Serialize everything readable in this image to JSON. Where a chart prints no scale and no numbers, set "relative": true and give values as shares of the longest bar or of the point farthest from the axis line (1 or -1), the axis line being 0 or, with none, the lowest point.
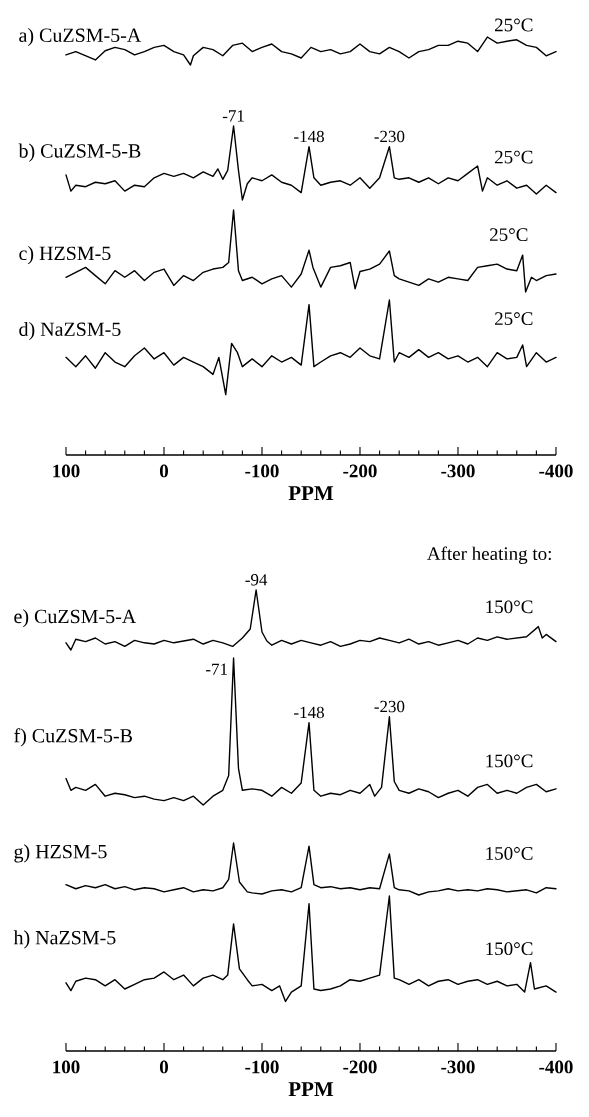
{
  "chart_data": [
    {
      "type": "line",
      "relative": true,
      "xlim": [
        100,
        -400
      ],
      "tick_labels": false,
      "annotations": [
        "25°C"
      ],
      "x": [
        100,
        90,
        80,
        70,
        60,
        50,
        40,
        30,
        20,
        10,
        0,
        -10,
        -20,
        -27,
        -30,
        -40,
        -50,
        -60,
        -70,
        -80,
        -90,
        -100,
        -110,
        -120,
        -130,
        -140,
        -150,
        -160,
        -170,
        -180,
        -190,
        -200,
        -210,
        -220,
        -230,
        -240,
        -250,
        -260,
        -270,
        -280,
        -290,
        -300,
        -310,
        -320,
        -330,
        -340,
        -350,
        -360,
        -370,
        -380,
        -390,
        -400
      ],
      "series": [
        {
          "name": "a) CuZSM-5-A",
          "color": "#000000",
          "values": [
            0.36,
            0.48,
            0.33,
            0.18,
            0.51,
            0.63,
            0.55,
            0.36,
            0.48,
            0.63,
            0.7,
            0.48,
            0.36,
            0,
            0.33,
            0.63,
            0.55,
            0.33,
            0.7,
            0.78,
            0.48,
            0.63,
            0.75,
            0.48,
            0.4,
            0.25,
            0.63,
            0.48,
            0.55,
            0.4,
            0.48,
            0.75,
            0.48,
            0.4,
            0.63,
            0.48,
            0.25,
            0.48,
            0.55,
            0.7,
            0.7,
            0.85,
            0.78,
            0.48,
            1,
            0.78,
            0.85,
            0.9,
            0.7,
            0.63,
            0.33,
            0.48
          ]
        }
      ]
    },
    {
      "type": "line",
      "relative": true,
      "xlim": [
        100,
        -400
      ],
      "tick_labels": false,
      "annotations": [
        "25°C",
        {
          "text": "-71",
          "x": -71,
          "y": 1
        },
        {
          "text": "-148",
          "x": -148,
          "y": 0.72
        },
        {
          "text": "-230",
          "x": -230,
          "y": 0.72
        }
      ],
      "x": [
        100,
        95,
        90,
        80,
        70,
        60,
        50,
        40,
        30,
        20,
        10,
        0,
        -10,
        -20,
        -30,
        -40,
        -50,
        -55,
        -60,
        -65,
        -71,
        -76,
        -80,
        -85,
        -90,
        -100,
        -110,
        -120,
        -130,
        -140,
        -148,
        -153,
        -160,
        -170,
        -180,
        -190,
        -200,
        -210,
        -220,
        -230,
        -235,
        -240,
        -250,
        -260,
        -270,
        -280,
        -290,
        -300,
        -310,
        -320,
        -325,
        -330,
        -340,
        -350,
        -360,
        -370,
        -380,
        -390,
        -400
      ],
      "series": [
        {
          "name": "b) CuZSM-5-B",
          "color": "#000000",
          "values": [
            0.34,
            0.12,
            0.2,
            0.18,
            0.24,
            0.22,
            0.26,
            0.12,
            0.2,
            0.18,
            0.3,
            0.36,
            0.32,
            0.36,
            0.3,
            0.38,
            0.32,
            0.42,
            0.28,
            0.4,
            1,
            0.4,
            0,
            0.22,
            0.3,
            0.26,
            0.34,
            0.24,
            0.2,
            0.1,
            0.72,
            0.3,
            0.2,
            0.24,
            0.26,
            0.2,
            0.3,
            0.16,
            0.3,
            0.72,
            0.3,
            0.28,
            0.3,
            0.24,
            0.3,
            0.22,
            0.3,
            0.26,
            0.36,
            0.46,
            0.12,
            0.3,
            0.2,
            0.26,
            0.16,
            0.2,
            0.08,
            0.2,
            0.1
          ]
        }
      ]
    },
    {
      "type": "line",
      "relative": true,
      "xlim": [
        100,
        -400
      ],
      "tick_labels": false,
      "annotations": [
        "25°C"
      ],
      "x": [
        100,
        90,
        80,
        70,
        60,
        50,
        40,
        30,
        20,
        10,
        0,
        -10,
        -20,
        -30,
        -40,
        -50,
        -60,
        -66,
        -71,
        -76,
        -80,
        -90,
        -100,
        -110,
        -120,
        -130,
        -140,
        -148,
        -152,
        -160,
        -170,
        -180,
        -190,
        -195,
        -200,
        -210,
        -220,
        -230,
        -235,
        -240,
        -250,
        -260,
        -270,
        -280,
        -290,
        -300,
        -310,
        -320,
        -330,
        -340,
        -350,
        -360,
        -366,
        -369,
        -375,
        -380,
        -390,
        -400
      ],
      "series": [
        {
          "name": "c) HZSM-5",
          "color": "#000000",
          "values": [
            0.18,
            0.24,
            0.3,
            0.2,
            0.1,
            0.26,
            0.18,
            0.26,
            0.14,
            0.24,
            0.28,
            0.08,
            0.2,
            0.14,
            0.24,
            0.28,
            0.3,
            0.36,
            1,
            0.26,
            0.14,
            0.18,
            0.1,
            0.16,
            0.2,
            0.06,
            0.22,
            0.51,
            0.3,
            0.06,
            0.3,
            0.32,
            0.36,
            0.04,
            0.25,
            0.28,
            0.34,
            0.5,
            0.2,
            0.16,
            0.12,
            0.08,
            0.16,
            0.12,
            0.18,
            0.16,
            0.14,
            0.3,
            0.32,
            0.34,
            0.28,
            0.26,
            0.45,
            0,
            0.18,
            0.14,
            0.2,
            0.22
          ]
        }
      ]
    },
    {
      "type": "line",
      "relative": true,
      "xlim": [
        100,
        -400
      ],
      "tick_labels": "x",
      "xlabel": "PPM",
      "annotations": [
        "25°C"
      ],
      "xticks": [
        100,
        {
          "value": 80,
          "label": null
        },
        {
          "value": 60,
          "label": null
        },
        {
          "value": 40,
          "label": null
        },
        {
          "value": 20,
          "label": null
        },
        0,
        {
          "value": -20,
          "label": null
        },
        {
          "value": -40,
          "label": null
        },
        {
          "value": -60,
          "label": null
        },
        {
          "value": -80,
          "label": null
        },
        -100,
        {
          "value": -120,
          "label": null
        },
        {
          "value": -140,
          "label": null
        },
        {
          "value": -160,
          "label": null
        },
        {
          "value": -180,
          "label": null
        },
        -200,
        {
          "value": -220,
          "label": null
        },
        {
          "value": -240,
          "label": null
        },
        {
          "value": -260,
          "label": null
        },
        {
          "value": -280,
          "label": null
        },
        -300,
        {
          "value": -320,
          "label": null
        },
        {
          "value": -340,
          "label": null
        },
        {
          "value": -360,
          "label": null
        },
        {
          "value": -380,
          "label": null
        },
        -400
      ],
      "x": [
        100,
        90,
        80,
        70,
        60,
        50,
        40,
        30,
        20,
        10,
        0,
        -10,
        -20,
        -30,
        -40,
        -50,
        -56,
        -63,
        -69,
        -75,
        -80,
        -90,
        -100,
        -110,
        -120,
        -130,
        -140,
        -148,
        -153,
        -160,
        -170,
        -180,
        -190,
        -200,
        -210,
        -220,
        -230,
        -235,
        -240,
        -250,
        -260,
        -270,
        -280,
        -290,
        -300,
        -310,
        -320,
        -330,
        -340,
        -350,
        -360,
        -366,
        -370,
        -380,
        -390,
        -400
      ],
      "series": [
        {
          "name": "d) NaZSM-5",
          "color": "#000000",
          "values": [
            0.63,
            0.57,
            0.64,
            0.56,
            0.66,
            0.6,
            0.57,
            0.64,
            0.69,
            0.62,
            0.66,
            0.58,
            0.63,
            0.6,
            0.57,
            0.52,
            0.63,
            0.39,
            0.72,
            0.66,
            0.57,
            0.62,
            0.57,
            0.64,
            0.6,
            0.63,
            0.58,
            0.97,
            0.57,
            0.6,
            0.64,
            0.66,
            0.63,
            0.69,
            0.64,
            0.62,
            1,
            0.6,
            0.66,
            0.63,
            0.68,
            0.63,
            0.66,
            0.62,
            0.64,
            0.6,
            0.63,
            0.57,
            0.66,
            0.62,
            0.63,
            0.71,
            0.57,
            0.66,
            0.6,
            0.63
          ]
        }
      ]
    },
    {
      "type": "line",
      "relative": true,
      "xlim": [
        100,
        -400
      ],
      "tick_labels": false,
      "annotations": [
        "After heating to:",
        "150°C",
        {
          "text": "-94",
          "x": -94,
          "y": 1
        }
      ],
      "x": [
        100,
        95,
        90,
        80,
        70,
        60,
        50,
        40,
        30,
        20,
        10,
        0,
        -10,
        -20,
        -30,
        -40,
        -50,
        -60,
        -70,
        -80,
        -88,
        -94,
        -100,
        -105,
        -110,
        -120,
        -130,
        -140,
        -150,
        -160,
        -170,
        -180,
        -190,
        -200,
        -210,
        -220,
        -230,
        -240,
        -250,
        -260,
        -270,
        -280,
        -290,
        -300,
        -310,
        -320,
        -330,
        -340,
        -350,
        -360,
        -370,
        -382,
        -386,
        -390,
        -400
      ],
      "series": [
        {
          "name": "e) CuZSM-5-A",
          "color": "#000000",
          "values": [
            0.12,
            0,
            0.18,
            0.14,
            0.2,
            0.1,
            0.14,
            0.06,
            0.16,
            0.12,
            0.1,
            0.16,
            0.12,
            0.15,
            0.18,
            0.1,
            0.16,
            0.12,
            0.06,
            0.2,
            0.35,
            1,
            0.3,
            0.15,
            0.08,
            0.16,
            0.1,
            0.16,
            0.12,
            0.08,
            0.14,
            0.06,
            0.1,
            0.16,
            0.14,
            0.2,
            0.16,
            0.12,
            0.18,
            0.1,
            0.14,
            0.08,
            0.12,
            0.16,
            0.1,
            0.2,
            0.16,
            0.22,
            0.18,
            0.2,
            0.22,
            0.39,
            0.2,
            0.26,
            0.14
          ]
        }
      ]
    },
    {
      "type": "line",
      "relative": true,
      "xlim": [
        100,
        -400
      ],
      "tick_labels": false,
      "annotations": [
        "150°C",
        {
          "text": "-71",
          "x": -71,
          "y": 1
        },
        {
          "text": "-148",
          "x": -148,
          "y": 0.56
        },
        {
          "text": "-230",
          "x": -230,
          "y": 0.6
        }
      ],
      "x": [
        100,
        95,
        90,
        80,
        70,
        60,
        50,
        40,
        30,
        20,
        10,
        0,
        -10,
        -20,
        -30,
        -40,
        -50,
        -60,
        -66,
        -71,
        -76,
        -80,
        -90,
        -100,
        -110,
        -120,
        -130,
        -140,
        -148,
        -153,
        -160,
        -170,
        -180,
        -190,
        -200,
        -210,
        -215,
        -222,
        -230,
        -235,
        -240,
        -250,
        -260,
        -270,
        -280,
        -290,
        -300,
        -310,
        -320,
        -330,
        -340,
        -350,
        -360,
        -370,
        -380,
        -390,
        -400
      ],
      "series": [
        {
          "name": "f) CuZSM-5-B",
          "color": "#000000",
          "values": [
            0.18,
            0.1,
            0.12,
            0.1,
            0.14,
            0.06,
            0.08,
            0.07,
            0.05,
            0.06,
            0.04,
            0.03,
            0.05,
            0.03,
            0.06,
            0,
            0.06,
            0.1,
            0.2,
            1,
            0.25,
            0.1,
            0.11,
            0.1,
            0.06,
            0.12,
            0.08,
            0.15,
            0.56,
            0.1,
            0.06,
            0.08,
            0.07,
            0.1,
            0.08,
            0.14,
            0.06,
            0.12,
            0.6,
            0.16,
            0.1,
            0.08,
            0.11,
            0.09,
            0.05,
            0.08,
            0.1,
            0.06,
            0.12,
            0.14,
            0.08,
            0.1,
            0.08,
            0.12,
            0.14,
            0.09,
            0.11
          ]
        }
      ]
    },
    {
      "type": "line",
      "relative": true,
      "xlim": [
        100,
        -400
      ],
      "tick_labels": false,
      "annotations": [
        "150°C"
      ],
      "x": [
        100,
        90,
        80,
        70,
        60,
        50,
        40,
        30,
        20,
        10,
        0,
        -10,
        -20,
        -30,
        -40,
        -50,
        -60,
        -66,
        -71,
        -77,
        -85,
        -90,
        -100,
        -110,
        -120,
        -130,
        -140,
        -148,
        -153,
        -160,
        -170,
        -180,
        -190,
        -200,
        -210,
        -220,
        -230,
        -235,
        -240,
        -250,
        -260,
        -270,
        -280,
        -290,
        -300,
        -310,
        -320,
        -330,
        -340,
        -350,
        -360,
        -370,
        -380,
        -390,
        -400
      ],
      "series": [
        {
          "name": "g) HZSM-5",
          "color": "#000000",
          "values": [
            0.2,
            0.12,
            0.18,
            0.14,
            0.2,
            0.12,
            0.16,
            0.1,
            0.14,
            0.12,
            0.06,
            0.1,
            0.14,
            0.06,
            0.1,
            0.08,
            0.14,
            0.3,
            1,
            0.25,
            0.06,
            0.04,
            0.02,
            0.08,
            0.1,
            0.06,
            0.14,
            0.94,
            0.2,
            0.14,
            0.16,
            0.12,
            0.14,
            0.1,
            0.14,
            0.12,
            0.79,
            0.14,
            0.1,
            0.08,
            0,
            0.06,
            0.08,
            0.12,
            0.08,
            0.1,
            0.08,
            0.12,
            0.1,
            0.06,
            0.08,
            0.1,
            0.04,
            0.14,
            0.12
          ]
        }
      ]
    },
    {
      "type": "line",
      "relative": true,
      "xlim": [
        100,
        -400
      ],
      "tick_labels": "x",
      "xlabel": "PPM",
      "annotations": [
        "150°C"
      ],
      "xticks": [
        100,
        {
          "value": 80,
          "label": null
        },
        {
          "value": 60,
          "label": null
        },
        {
          "value": 40,
          "label": null
        },
        {
          "value": 20,
          "label": null
        },
        0,
        {
          "value": -20,
          "label": null
        },
        {
          "value": -40,
          "label": null
        },
        {
          "value": -60,
          "label": null
        },
        {
          "value": -80,
          "label": null
        },
        -100,
        {
          "value": -120,
          "label": null
        },
        {
          "value": -140,
          "label": null
        },
        {
          "value": -160,
          "label": null
        },
        {
          "value": -180,
          "label": null
        },
        -200,
        {
          "value": -220,
          "label": null
        },
        {
          "value": -240,
          "label": null
        },
        {
          "value": -260,
          "label": null
        },
        {
          "value": -280,
          "label": null
        },
        -300,
        {
          "value": -320,
          "label": null
        },
        {
          "value": -340,
          "label": null
        },
        {
          "value": -360,
          "label": null
        },
        {
          "value": -380,
          "label": null
        },
        -400
      ],
      "x": [
        100,
        95,
        90,
        80,
        70,
        60,
        50,
        40,
        30,
        20,
        10,
        0,
        -10,
        -20,
        -30,
        -40,
        -50,
        -60,
        -65,
        -71,
        -77,
        -85,
        -90,
        -100,
        -110,
        -118,
        -124,
        -130,
        -140,
        -148,
        -153,
        -160,
        -170,
        -180,
        -190,
        -200,
        -210,
        -220,
        -230,
        -235,
        -240,
        -250,
        -260,
        -270,
        -280,
        -290,
        -300,
        -310,
        -320,
        -330,
        -340,
        -350,
        -360,
        -368,
        -374,
        -378,
        -390,
        -400
      ],
      "series": [
        {
          "name": "h) NaZSM-5",
          "color": "#000000",
          "values": [
            0.44,
            0.39,
            0.45,
            0.47,
            0.46,
            0.42,
            0.46,
            0.4,
            0.43,
            0.46,
            0.47,
            0.51,
            0.46,
            0.49,
            0.42,
            0.47,
            0.49,
            0.46,
            0.49,
            0.82,
            0.53,
            0.46,
            0.42,
            0.43,
            0.39,
            0.42,
            0.32,
            0.38,
            0.42,
            0.95,
            0.4,
            0.39,
            0.4,
            0.42,
            0.46,
            0.45,
            0.47,
            0.49,
            1,
            0.47,
            0.46,
            0.43,
            0.46,
            0.42,
            0.45,
            0.46,
            0.43,
            0.45,
            0.46,
            0.43,
            0.45,
            0.42,
            0.43,
            0.38,
            0.57,
            0.4,
            0.42,
            0.38
          ]
        }
      ]
    }
  ]
}
